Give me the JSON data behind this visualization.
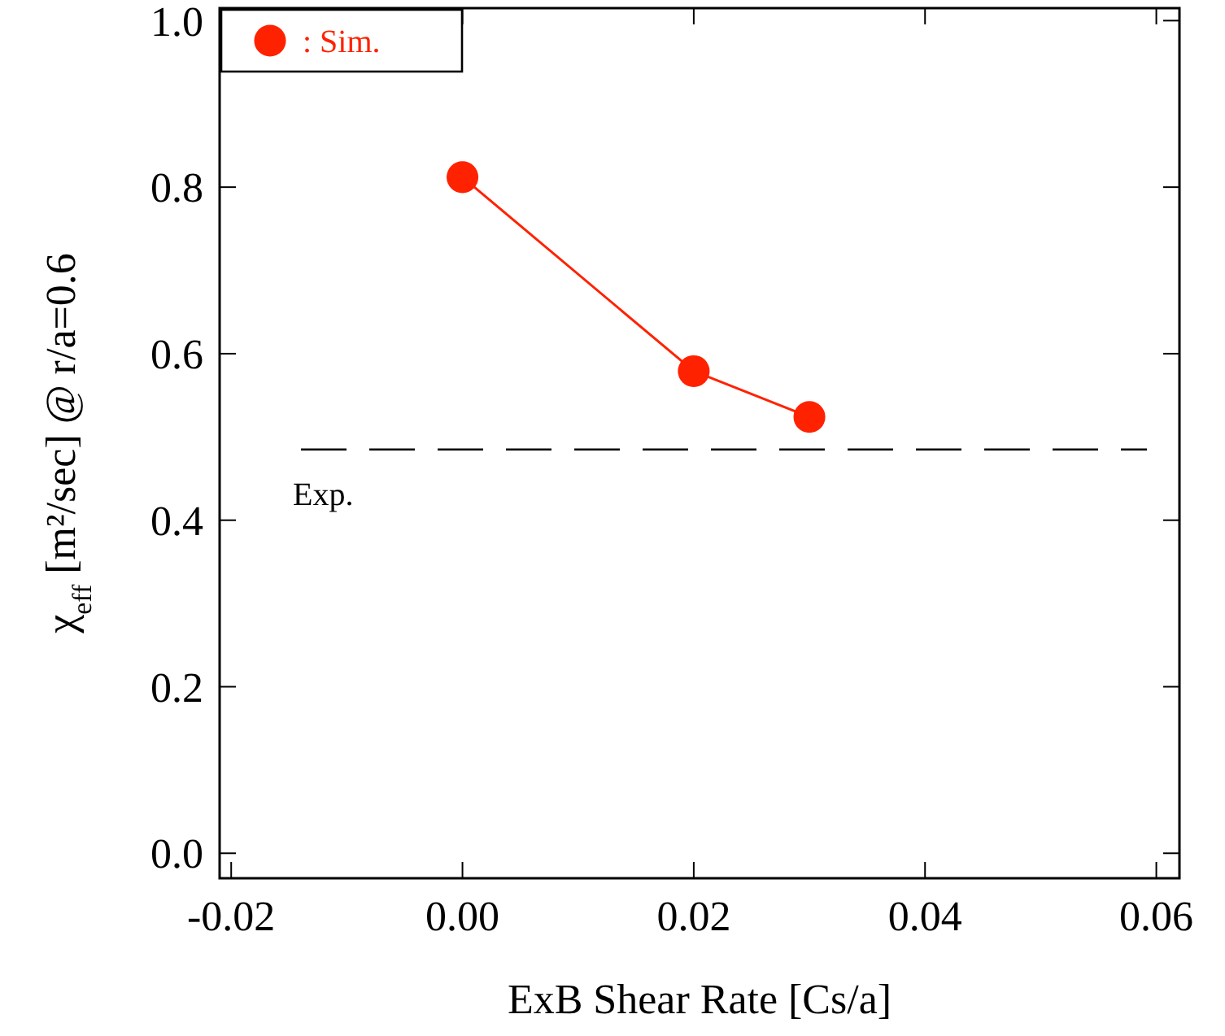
{
  "chart_data": {
    "type": "line",
    "xlabel": "ExB Shear Rate [Cs/a]",
    "ylabel": "χ$_{eff}$ [m²/sec] @ r/a=0.6",
    "x": [
      0.0,
      0.02,
      0.03
    ],
    "series": [
      {
        "name": ": Sim.",
        "color": "#ff2200",
        "values": [
          0.812,
          0.579,
          0.524
        ]
      }
    ],
    "xlim": [
      -0.021,
      0.062
    ],
    "xticks": [
      {
        "value": -0.02,
        "label": "-0.02"
      },
      {
        "value": 0,
        "label": "0.00"
      },
      {
        "value": 0.02,
        "label": "0.02"
      },
      {
        "value": 0.04,
        "label": "0.04"
      },
      {
        "value": 0.06,
        "label": "0.06"
      }
    ],
    "ylim": [
      -0.03,
      1.015
    ],
    "yticks": [
      {
        "value": 0,
        "label": "0.0"
      },
      {
        "value": 0.2,
        "label": "0.2"
      },
      {
        "value": 0.4,
        "label": "0.4"
      },
      {
        "value": 0.6,
        "label": "0.6"
      },
      {
        "value": 0.8,
        "label": "0.8"
      },
      {
        "value": 1,
        "label": "1.0"
      }
    ],
    "ref_lines": [
      {
        "axis": "y",
        "value": 0.485,
        "label": "Exp.",
        "color": "#000000",
        "line_style": "dashed"
      }
    ],
    "marker": "circle",
    "legend": "top left",
    "grid": false
  }
}
